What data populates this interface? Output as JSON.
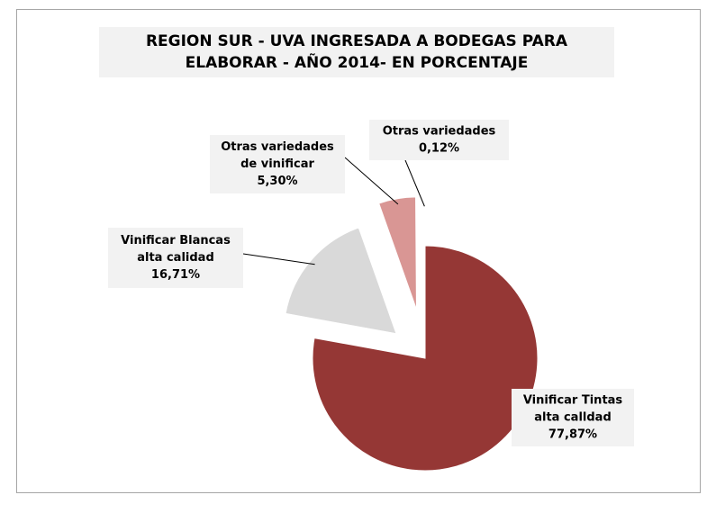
{
  "chart_data": {
    "type": "pie",
    "title": "REGION SUR - UVA INGRESADA A BODEGAS PARA ELABORAR - AÑO 2014- EN PORCENTAJE",
    "categories": [
      [
        "Vinificar Tintas",
        "alta calldad"
      ],
      [
        "Vinificar Blancas",
        "alta calidad"
      ],
      [
        "Otras variedades",
        "de vinificar"
      ],
      [
        "Otras variedades"
      ]
    ],
    "values": [
      77.87,
      16.71,
      5.3,
      0.12
    ],
    "value_labels": [
      "77,87%",
      "16,71%",
      "5,30%",
      "0,12%"
    ],
    "colors": [
      "#953735",
      "#d9d9d9",
      "#d99694",
      "#f2dcdb"
    ]
  }
}
